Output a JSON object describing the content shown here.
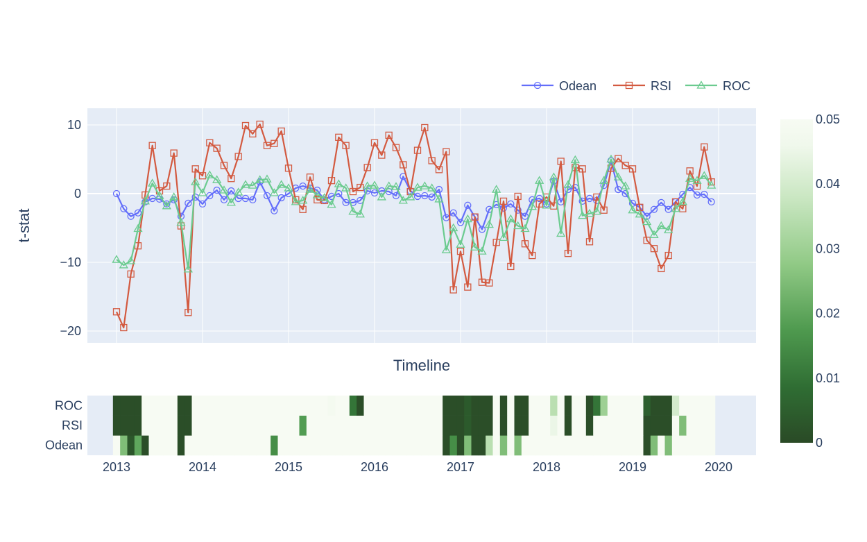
{
  "chart_data": [
    {
      "type": "line",
      "xlabel": "Timeline",
      "ylabel": "t-stat",
      "ylim": [
        -21.7,
        12.4
      ],
      "y_ticks": [
        10,
        0,
        -10,
        -20
      ],
      "y_tick_labels": [
        "10",
        "0",
        "−10",
        "−20"
      ],
      "x_ticks": [
        "2013",
        "2014",
        "2015",
        "2016",
        "2017",
        "2018",
        "2019",
        "2020"
      ],
      "grid": true,
      "legend_position": "top-right",
      "x": [
        "2013-01",
        "2013-02",
        "2013-03",
        "2013-04",
        "2013-05",
        "2013-06",
        "2013-07",
        "2013-08",
        "2013-09",
        "2013-10",
        "2013-11",
        "2013-12",
        "2014-01",
        "2014-02",
        "2014-03",
        "2014-04",
        "2014-05",
        "2014-06",
        "2014-07",
        "2014-08",
        "2014-09",
        "2014-10",
        "2014-11",
        "2014-12",
        "2015-01",
        "2015-02",
        "2015-03",
        "2015-04",
        "2015-05",
        "2015-06",
        "2015-07",
        "2015-08",
        "2015-09",
        "2015-10",
        "2015-11",
        "2015-12",
        "2016-01",
        "2016-02",
        "2016-03",
        "2016-04",
        "2016-05",
        "2016-06",
        "2016-07",
        "2016-08",
        "2016-09",
        "2016-10",
        "2016-11",
        "2016-12",
        "2017-01",
        "2017-02",
        "2017-03",
        "2017-04",
        "2017-05",
        "2017-06",
        "2017-07",
        "2017-08",
        "2017-09",
        "2017-10",
        "2017-11",
        "2017-12",
        "2018-01",
        "2018-02",
        "2018-03",
        "2018-04",
        "2018-05",
        "2018-06",
        "2018-07",
        "2018-08",
        "2018-09",
        "2018-10",
        "2018-11",
        "2018-12",
        "2019-01",
        "2019-02",
        "2019-03",
        "2019-04",
        "2019-05",
        "2019-06",
        "2019-07",
        "2019-08",
        "2019-09",
        "2019-10",
        "2019-11",
        "2019-12"
      ],
      "series": [
        {
          "name": "Odean",
          "color": "#636efa",
          "marker": "circle-open",
          "values": [
            0.0,
            -2.2,
            -3.3,
            -2.8,
            -1.2,
            -0.7,
            -0.8,
            -1.5,
            -0.9,
            -3.3,
            -1.4,
            -0.5,
            -1.5,
            -0.3,
            0.5,
            -0.9,
            0.4,
            -0.7,
            -0.7,
            -0.9,
            1.7,
            -0.3,
            -2.5,
            -0.6,
            0.0,
            0.8,
            1.1,
            0.8,
            0.5,
            -0.9,
            -0.4,
            0.0,
            -1.3,
            -1.3,
            -1.0,
            0.4,
            0.1,
            0.4,
            0.3,
            -0.3,
            2.5,
            0.4,
            -0.4,
            -0.3,
            -0.5,
            0.6,
            -3.5,
            -2.8,
            -4.2,
            -1.7,
            -3.4,
            -5.2,
            -2.3,
            -1.6,
            -2.1,
            -1.5,
            -2.4,
            -3.3,
            -0.9,
            -0.7,
            -1.5,
            1.8,
            -1.2,
            0.6,
            0.9,
            -1.1,
            -0.7,
            -1.0,
            1.2,
            4.8,
            0.6,
            0.0,
            -1.4,
            -2.0,
            -3.3,
            -2.3,
            -1.3,
            -2.3,
            -1.2,
            -0.1,
            0.9,
            -0.2,
            -0.1,
            -1.2
          ]
        },
        {
          "name": "RSI",
          "color": "#d35a40",
          "marker": "square-open",
          "values": [
            -17.2,
            -19.5,
            -11.7,
            -7.6,
            -0.2,
            7.0,
            0.4,
            1.1,
            5.9,
            -4.7,
            -17.3,
            3.6,
            2.6,
            7.4,
            6.6,
            4.1,
            2.2,
            5.4,
            9.9,
            8.7,
            10.1,
            7.0,
            7.3,
            9.1,
            3.7,
            -0.9,
            -2.3,
            2.4,
            -0.9,
            -1.0,
            1.9,
            8.2,
            7.0,
            0.3,
            0.9,
            3.8,
            7.4,
            5.6,
            8.5,
            6.7,
            4.2,
            0.3,
            6.3,
            9.6,
            4.8,
            3.5,
            6.1,
            -14.0,
            -8.4,
            -13.6,
            -3.4,
            -12.9,
            -13.0,
            -7.1,
            -1.1,
            -10.6,
            -0.4,
            -7.3,
            -9.0,
            -1.5,
            -0.5,
            -1.8,
            4.7,
            -8.7,
            3.8,
            3.6,
            -7.0,
            -0.5,
            -2.4,
            3.7,
            5.1,
            4.1,
            3.6,
            -2.0,
            -6.8,
            -8.0,
            -10.9,
            -9.0,
            -1.2,
            -2.2,
            3.3,
            1.1,
            6.8,
            1.7
          ]
        },
        {
          "name": "ROC",
          "color": "#6bcb8f",
          "marker": "triangle-up-open",
          "values": [
            -9.6,
            -10.4,
            -9.8,
            -5.1,
            -1.1,
            1.5,
            -0.3,
            -1.8,
            -0.5,
            -4.2,
            -11.0,
            1.7,
            0.1,
            2.7,
            2.0,
            0.5,
            -1.3,
            0.2,
            1.3,
            1.2,
            2.0,
            2.1,
            0.1,
            1.3,
            0.8,
            -1.2,
            -1.0,
            0.6,
            -0.2,
            -0.6,
            -1.6,
            1.4,
            0.8,
            -2.6,
            -3.0,
            1.1,
            1.2,
            -0.5,
            1.1,
            1.0,
            -1.0,
            -0.5,
            0.9,
            1.1,
            0.8,
            -0.8,
            -8.2,
            -5.0,
            -7.4,
            -3.7,
            -7.8,
            -8.4,
            -4.5,
            0.6,
            -6.4,
            -3.7,
            -4.7,
            -5.1,
            -1.9,
            1.9,
            -1.7,
            2.4,
            -5.8,
            1.3,
            4.9,
            -3.2,
            -2.9,
            -2.6,
            1.9,
            5.0,
            2.4,
            1.1,
            -2.4,
            -3.0,
            -4.1,
            -6.0,
            -4.7,
            -5.3,
            -2.2,
            -1.2,
            2.2,
            1.9,
            2.6,
            1.2
          ]
        }
      ]
    },
    {
      "type": "heatmap",
      "rows": [
        "Odean",
        "RSI",
        "ROC"
      ],
      "x_ticks": [
        "2013",
        "2014",
        "2015",
        "2016",
        "2017",
        "2018",
        "2019",
        "2020"
      ],
      "colorscale": [
        "#2a4a26",
        "#2f6d33",
        "#4f9a4f",
        "#90c985",
        "#c8e6c0",
        "#f0f8ec",
        "#f7fbf3"
      ],
      "colorbar_range": [
        0,
        0.05
      ],
      "colorbar_ticks": [
        "0.05",
        "0.04",
        "0.03",
        "0.02",
        "0.01",
        "0"
      ],
      "cells": {
        "Odean": [
          0.05,
          0.025,
          0.003,
          0.02,
          0.001,
          0.05,
          0.05,
          0.05,
          0.05,
          0.001,
          0.05,
          0.05,
          0.05,
          0.05,
          0.05,
          0.05,
          0.05,
          0.05,
          0.05,
          0.05,
          0.05,
          0.05,
          0.015,
          0.05,
          0.05,
          0.05,
          0.05,
          0.05,
          0.05,
          0.05,
          0.05,
          0.05,
          0.05,
          0.05,
          0.05,
          0.05,
          0.05,
          0.05,
          0.05,
          0.05,
          0.05,
          0.05,
          0.05,
          0.05,
          0.05,
          0.05,
          0.001,
          0.015,
          0.001,
          0.025,
          0.001,
          0.001,
          0.035,
          0.05,
          0.025,
          0.05,
          0.025,
          0.05,
          0.05,
          0.05,
          0.05,
          0.05,
          0.05,
          0.05,
          0.05,
          0.05,
          0.05,
          0.05,
          0.05,
          0.05,
          0.05,
          0.05,
          0.05,
          0.05,
          0.001,
          0.025,
          0.05,
          0.025,
          0.05,
          0.05,
          0.05,
          0.05,
          0.05,
          0.05
        ],
        "RSI": [
          0.001,
          0.001,
          0.001,
          0.001,
          0.05,
          0.05,
          0.05,
          0.05,
          0.05,
          0.001,
          0.001,
          0.05,
          0.05,
          0.05,
          0.05,
          0.05,
          0.05,
          0.05,
          0.05,
          0.05,
          0.05,
          0.05,
          0.05,
          0.05,
          0.05,
          0.05,
          0.018,
          0.05,
          0.05,
          0.05,
          0.05,
          0.05,
          0.05,
          0.05,
          0.05,
          0.05,
          0.05,
          0.05,
          0.05,
          0.05,
          0.05,
          0.05,
          0.05,
          0.05,
          0.05,
          0.05,
          0.001,
          0.001,
          0.001,
          0.004,
          0.001,
          0.001,
          0.001,
          0.05,
          0.001,
          0.05,
          0.001,
          0.001,
          0.05,
          0.05,
          0.05,
          0.045,
          0.05,
          0.001,
          0.05,
          0.05,
          0.001,
          0.05,
          0.05,
          0.05,
          0.05,
          0.05,
          0.05,
          0.05,
          0.001,
          0.001,
          0.001,
          0.001,
          0.05,
          0.025,
          0.05,
          0.05,
          0.05,
          0.05
        ],
        "ROC": [
          0.001,
          0.001,
          0.001,
          0.001,
          0.05,
          0.05,
          0.05,
          0.05,
          0.05,
          0.001,
          0.001,
          0.05,
          0.05,
          0.05,
          0.05,
          0.05,
          0.05,
          0.05,
          0.05,
          0.05,
          0.05,
          0.05,
          0.05,
          0.05,
          0.05,
          0.05,
          0.05,
          0.05,
          0.05,
          0.05,
          0.048,
          0.05,
          0.05,
          0.01,
          0.001,
          0.05,
          0.05,
          0.05,
          0.05,
          0.05,
          0.05,
          0.05,
          0.05,
          0.05,
          0.05,
          0.05,
          0.001,
          0.001,
          0.001,
          0.004,
          0.001,
          0.001,
          0.001,
          0.05,
          0.001,
          0.05,
          0.001,
          0.001,
          0.05,
          0.05,
          0.05,
          0.035,
          0.05,
          0.001,
          0.05,
          0.05,
          0.001,
          0.01,
          0.03,
          0.05,
          0.05,
          0.05,
          0.05,
          0.05,
          0.005,
          0.001,
          0.001,
          0.001,
          0.04,
          0.05,
          0.05,
          0.05,
          0.05,
          0.05
        ]
      }
    }
  ]
}
